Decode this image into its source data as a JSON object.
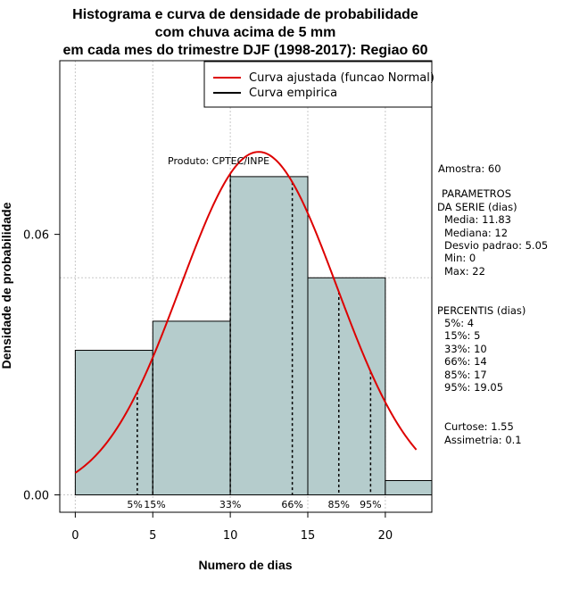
{
  "chart_data": {
    "type": "bar",
    "title_lines": [
      "Histograma e curva de densidade de probabilidade",
      "com chuva acima de 5 mm",
      "em cada mes do trimestre DJF (1998-2017): Regiao 60"
    ],
    "xlabel": "Numero de dias",
    "ylabel": "Densidade de probabilidade",
    "xlim": [
      -1,
      23
    ],
    "ylim": [
      -0.004,
      0.1
    ],
    "x_ticks": [
      0,
      5,
      10,
      15,
      20
    ],
    "x_tick_labels": [
      "0",
      "5",
      "10",
      "15",
      "20"
    ],
    "y_ticks": [
      0.0,
      0.06
    ],
    "y_tick_labels": [
      "0.00",
      "0.06"
    ],
    "grid": true,
    "grid_x": [
      0,
      5,
      10,
      15,
      20
    ],
    "grid_y": [
      0.0,
      0.05,
      0.1
    ],
    "bins": [
      {
        "start": 0,
        "end": 5,
        "density": 0.0333
      },
      {
        "start": 5,
        "end": 10,
        "density": 0.04
      },
      {
        "start": 10,
        "end": 15,
        "density": 0.0733
      },
      {
        "start": 15,
        "end": 20,
        "density": 0.05
      },
      {
        "start": 20,
        "end": 23,
        "density": 0.0033
      }
    ],
    "bar_color": "#b5cccc",
    "curve": {
      "name": "Curva ajustada (funcao Normal)",
      "mean": 11.83,
      "sd": 5.05,
      "x_range": [
        0,
        22
      ],
      "color": "#dd0000"
    },
    "empirical_label": "Curva empirica",
    "percentiles": [
      {
        "label": "5%",
        "x": 4
      },
      {
        "label": "15%",
        "x": 5
      },
      {
        "label": "33%",
        "x": 10
      },
      {
        "label": "66%",
        "x": 14
      },
      {
        "label": "85%",
        "x": 17
      },
      {
        "label": "95%",
        "x": 19.05
      }
    ],
    "legend_position": "top-right",
    "annotation": "Produto: CPTEC/INPE"
  },
  "side_panel": {
    "sample": "Amostra: 60",
    "params_title_1": "PARAMETROS",
    "params_title_2": "DA SERIE (dias)",
    "media": "Media: 11.83",
    "mediana": "Mediana: 12",
    "desvio": "Desvio padrao: 5.05",
    "min": "Min: 0",
    "max": "Max: 22",
    "percentis_title": "PERCENTIS (dias)",
    "p5": "5%: 4",
    "p15": "15%: 5",
    "p33": "33%: 10",
    "p66": "66%: 14",
    "p85": "85%: 17",
    "p95": "95%: 19.05",
    "curtose": "Curtose: 1.55",
    "assimetria": "Assimetria: 0.1"
  }
}
